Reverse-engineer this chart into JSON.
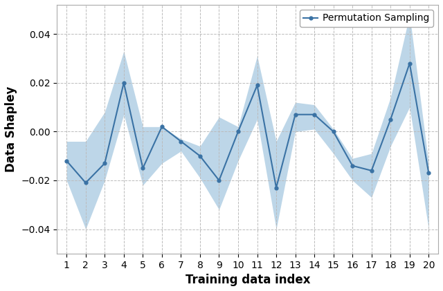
{
  "x": [
    1,
    2,
    3,
    4,
    5,
    6,
    7,
    8,
    9,
    10,
    11,
    12,
    13,
    14,
    15,
    16,
    17,
    18,
    19,
    20
  ],
  "y": [
    -0.012,
    -0.021,
    -0.013,
    0.02,
    -0.015,
    0.002,
    -0.004,
    -0.01,
    -0.02,
    0.0,
    0.019,
    -0.023,
    0.007,
    0.007,
    0.0,
    -0.014,
    -0.016,
    0.005,
    0.028,
    -0.017
  ],
  "y_upper": [
    -0.004,
    -0.004,
    0.008,
    0.033,
    0.002,
    0.002,
    -0.003,
    -0.006,
    0.006,
    0.002,
    0.031,
    -0.004,
    0.012,
    0.011,
    0.001,
    -0.011,
    -0.009,
    0.014,
    0.048,
    -0.013
  ],
  "y_lower": [
    -0.02,
    -0.04,
    -0.02,
    0.007,
    -0.022,
    -0.013,
    -0.008,
    -0.019,
    -0.032,
    -0.012,
    0.005,
    -0.04,
    0.0,
    0.001,
    -0.009,
    -0.02,
    -0.027,
    -0.006,
    0.01,
    -0.04
  ],
  "line_color": "#3a72a4",
  "fill_color": "#6ea6cc",
  "fill_alpha": 0.45,
  "marker": "o",
  "marker_size": 3.5,
  "linewidth": 1.5,
  "xlabel": "Training data index",
  "ylabel": "Data Shapley",
  "legend_label": "Permutation Sampling",
  "xlim": [
    0.5,
    20.5
  ],
  "ylim": [
    -0.05,
    0.052
  ],
  "yticks": [
    -0.04,
    -0.02,
    0.0,
    0.02,
    0.04
  ],
  "xticks": [
    1,
    2,
    3,
    4,
    5,
    6,
    7,
    8,
    9,
    10,
    11,
    12,
    13,
    14,
    15,
    16,
    17,
    18,
    19,
    20
  ],
  "grid_color": "#bbbbbb",
  "grid_linestyle": "--",
  "background_color": "#ffffff",
  "label_fontsize": 12,
  "tick_fontsize": 10,
  "legend_fontsize": 10
}
